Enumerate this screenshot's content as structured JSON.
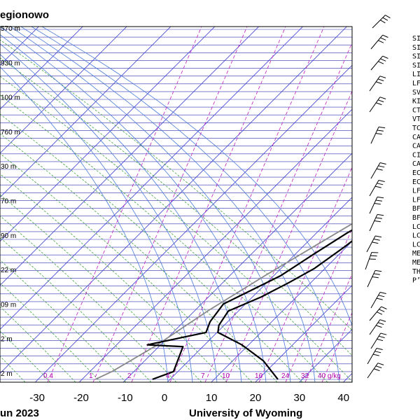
{
  "title": "egionowo",
  "footer_left": "un 2023",
  "footer_right": "University of Wyoming",
  "chart_data": {
    "type": "line",
    "title": "egionowo",
    "xlabel": "",
    "ylabel": "",
    "xlim": [
      -38,
      42
    ],
    "x_ticks": [
      -30,
      -20,
      -10,
      0,
      10,
      20,
      30,
      40
    ],
    "x_tick_labels": [
      "-30",
      "-20",
      "-10",
      "0",
      "10",
      "20",
      "30",
      "40"
    ],
    "height_labels": [
      {
        "label": "570 m",
        "level": 0
      },
      {
        "label": "930 m",
        "level": 1
      },
      {
        "label": "100 m",
        "level": 2
      },
      {
        "label": "760 m",
        "level": 3
      },
      {
        "label": "30 m",
        "level": 4
      },
      {
        "label": "70 m",
        "level": 5
      },
      {
        "label": "90 m",
        "level": 6
      },
      {
        "label": "22 m",
        "level": 7
      },
      {
        "label": "09 m",
        "level": 8
      },
      {
        "label": "2 m",
        "level": 9
      },
      {
        "label": "2 m",
        "level": 10
      }
    ],
    "mixing_ratio_labels": [
      "0.4",
      "1",
      "2",
      "4",
      "7",
      "10",
      "16",
      "24",
      "32",
      "40 g/kg"
    ],
    "mixing_ratio_values": [
      0.4,
      1,
      2,
      4,
      7,
      10,
      16,
      24,
      32,
      40
    ],
    "series": [],
    "temperature_profile": [
      [
        23.5,
        100
      ],
      [
        21.8,
        97
      ],
      [
        20.6,
        94
      ],
      [
        22.4,
        91
      ],
      [
        21.5,
        88
      ],
      [
        19.5,
        85
      ],
      [
        20.5,
        80
      ],
      [
        18.6,
        75
      ],
      [
        17.5,
        70
      ],
      [
        16.2,
        65
      ],
      [
        17.5,
        62
      ],
      [
        16.8,
        58
      ],
      [
        14.6,
        55
      ],
      [
        14.2,
        52
      ],
      [
        12.2,
        48
      ],
      [
        11.0,
        44
      ],
      [
        9.5,
        38
      ],
      [
        7.6,
        32
      ],
      [
        5.0,
        28
      ],
      [
        2.0,
        24
      ],
      [
        -2.3,
        20
      ],
      [
        -1.2,
        16
      ],
      [
        0.2,
        14
      ],
      [
        8.5,
        10.5
      ],
      [
        17.0,
        6
      ],
      [
        24.5,
        0.8
      ]
    ],
    "dewpoint_profile": [
      [
        22.0,
        100
      ],
      [
        20.0,
        97
      ],
      [
        18.5,
        95
      ],
      [
        16.8,
        92
      ],
      [
        16.4,
        88
      ],
      [
        16.0,
        84
      ],
      [
        14.5,
        78
      ],
      [
        16.2,
        73
      ],
      [
        15.5,
        70
      ],
      [
        11.5,
        68
      ],
      [
        15.0,
        66
      ],
      [
        11.5,
        64
      ],
      [
        10.0,
        62
      ],
      [
        13.0,
        59
      ],
      [
        12.5,
        57
      ],
      [
        10.5,
        53
      ],
      [
        12.0,
        50
      ],
      [
        10.5,
        48
      ],
      [
        7.0,
        42
      ],
      [
        4.2,
        36
      ],
      [
        1.6,
        30
      ],
      [
        -2.5,
        25
      ],
      [
        -5.0,
        22
      ],
      [
        -4.0,
        17
      ],
      [
        -2.5,
        14
      ],
      [
        -11.5,
        11
      ],
      [
        -13.0,
        10.5
      ],
      [
        -4.5,
        10
      ],
      [
        -1.0,
        3
      ],
      [
        -4.0,
        0.8
      ]
    ],
    "parcel_profile": [
      [
        22.0,
        100
      ],
      [
        21.0,
        90
      ],
      [
        17.8,
        75
      ],
      [
        14.0,
        62
      ],
      [
        9.0,
        50
      ],
      [
        3.5,
        40
      ],
      [
        -2.0,
        30
      ],
      [
        -7.0,
        20
      ],
      [
        -11.0,
        10
      ],
      [
        -15.0,
        3
      ],
      [
        -17.0,
        0.8
      ]
    ],
    "stability_indices": [
      "SI",
      "SI",
      "SI",
      "SI",
      "LI",
      "LF",
      "SV",
      "KI",
      "CT",
      "VT",
      "TC",
      "CA",
      "CA",
      "CI",
      "CA",
      "EC",
      "EC",
      "LF",
      "LF",
      "BF",
      "BF",
      "LC",
      "LC",
      "LC",
      "ME",
      "ME",
      "TH",
      "P’"
    ],
    "grid": true,
    "legend": "none"
  }
}
